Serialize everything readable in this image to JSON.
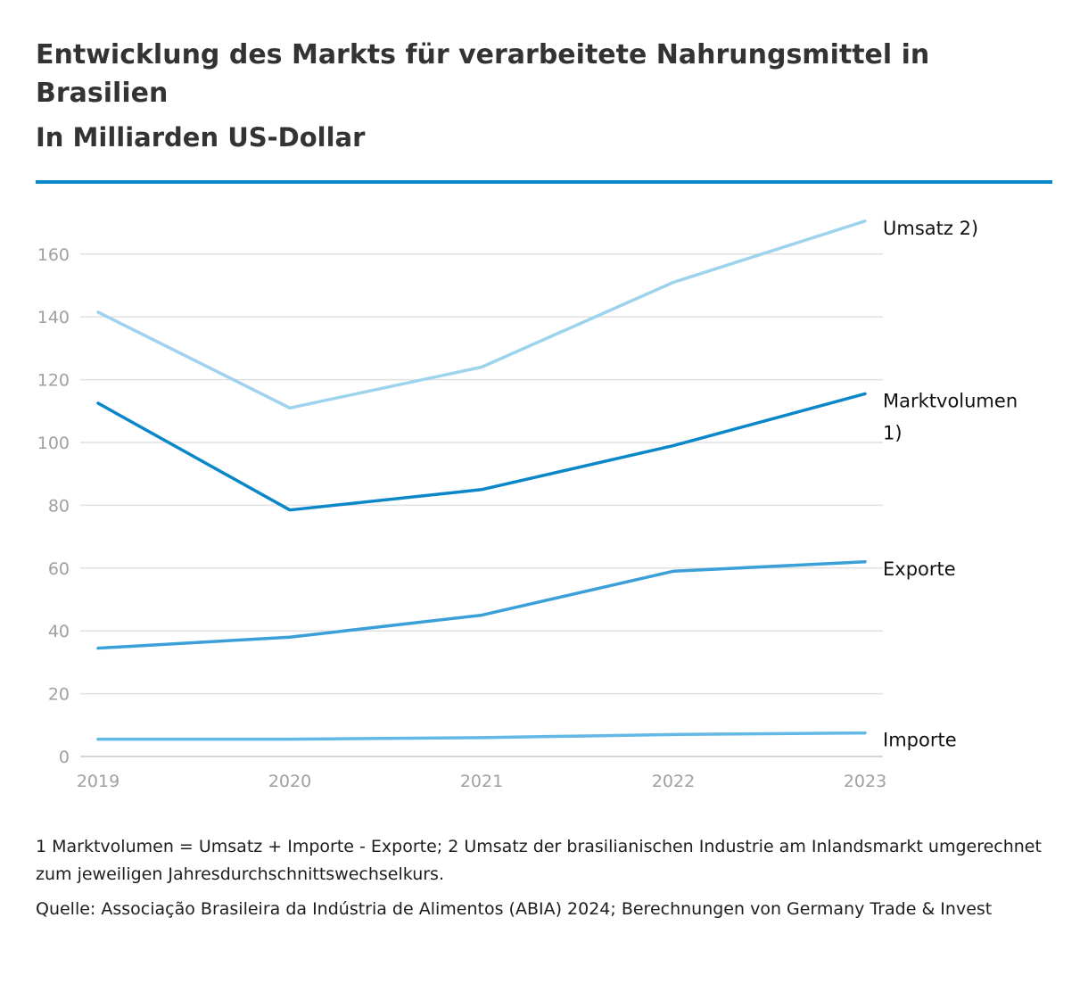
{
  "title": "Entwicklung des Markts für verarbeitete Nahrungsmittel in Brasilien",
  "subtitle": "In Milliarden US-Dollar",
  "footnote": "1 Marktvolumen = Umsatz + Importe - Exporte; 2 Umsatz der brasilianischen Industrie am Inlandsmarkt umgerechnet zum jeweiligen Jahresdurchschnittswechselkurs.",
  "source": "Quelle: Associação Brasileira da Indústria de Alimentos (ABIA) 2024; Berechnungen von Germany Trade & Invest",
  "colors": {
    "accent_rule": "#0a87c8",
    "grid": "#e0e0e0",
    "tick_text": "#a0a0a0"
  },
  "chart_data": {
    "type": "line",
    "x": [
      "2019",
      "2020",
      "2021",
      "2022",
      "2023"
    ],
    "ylim": [
      0,
      170
    ],
    "yticks": [
      0,
      20,
      40,
      60,
      80,
      100,
      120,
      140,
      160
    ],
    "grid": "horizontal",
    "legend": "direct labels at right end of lines",
    "series": [
      {
        "name": "Umsatz 2)",
        "label_lines": [
          "Umsatz 2)"
        ],
        "color": "#9dd3ec",
        "values": [
          141.5,
          111,
          124,
          151,
          170.5
        ]
      },
      {
        "name": "Marktvolumen 1)",
        "label_lines": [
          "Marktvolumen",
          "1)"
        ],
        "color": "#0a87c8",
        "values": [
          112.5,
          78.5,
          85,
          99,
          115.5
        ]
      },
      {
        "name": "Exporte",
        "label_lines": [
          "Exporte"
        ],
        "color": "#3ba0d8",
        "values": [
          34.5,
          38,
          45,
          59,
          62
        ]
      },
      {
        "name": "Importe",
        "label_lines": [
          "Importe"
        ],
        "color": "#63b8e5",
        "values": [
          5.5,
          5.5,
          6,
          7,
          7.5
        ]
      }
    ]
  }
}
